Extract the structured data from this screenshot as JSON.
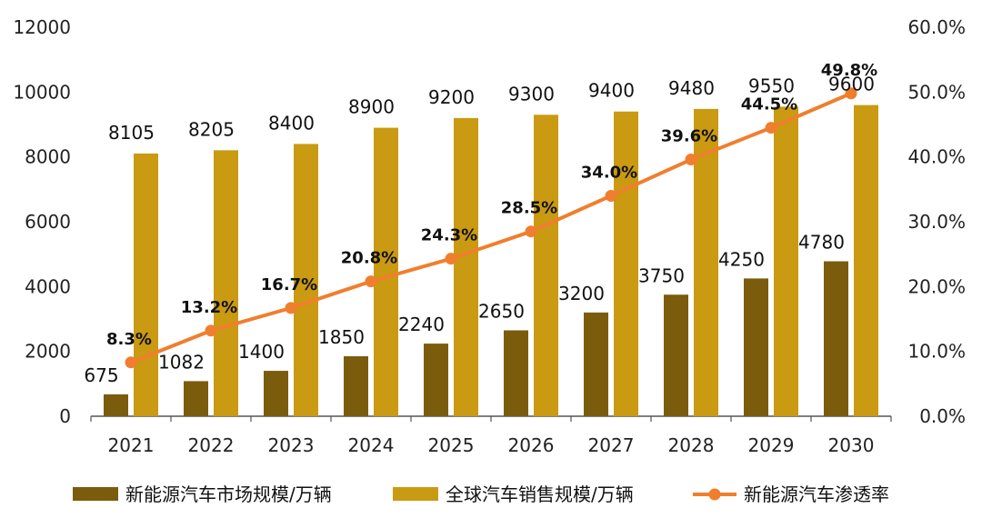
{
  "chart_data": {
    "type": "bar",
    "categories": [
      "2021",
      "2022",
      "2023",
      "2024",
      "2025",
      "2026",
      "2027",
      "2028",
      "2029",
      "2030"
    ],
    "series": [
      {
        "name": "新能源汽车市场规模/万辆",
        "type": "bar",
        "axis": "left",
        "color": "#7a5c0c",
        "values": [
          675,
          1082,
          1400,
          1850,
          2240,
          2650,
          3200,
          3750,
          4250,
          4780
        ]
      },
      {
        "name": "全球汽车销售规模/万辆",
        "type": "bar",
        "axis": "left",
        "color": "#c99a12",
        "values": [
          8105,
          8205,
          8400,
          8900,
          9200,
          9300,
          9400,
          9480,
          9550,
          9600
        ]
      },
      {
        "name": "新能源汽车渗透率",
        "type": "line",
        "axis": "right",
        "color": "#f07e2e",
        "values": [
          8.3,
          13.2,
          16.7,
          20.8,
          24.3,
          28.5,
          34.0,
          39.6,
          44.5,
          49.8
        ],
        "labels": [
          "8.3%",
          "13.2%",
          "16.7%",
          "20.8%",
          "24.3%",
          "28.5%",
          "34.0%",
          "39.6%",
          "44.5%",
          "49.8%"
        ]
      }
    ],
    "y_left": {
      "ylim": [
        0,
        12000
      ],
      "ticks": [
        0,
        2000,
        4000,
        6000,
        8000,
        10000,
        12000
      ],
      "tick_labels": [
        "0",
        "2000",
        "4000",
        "6000",
        "8000",
        "10000",
        "12000"
      ]
    },
    "y_right": {
      "ylim": [
        0,
        60
      ],
      "ticks": [
        0,
        10,
        20,
        30,
        40,
        50,
        60
      ],
      "tick_labels": [
        "0.0%",
        "10.0%",
        "20.0%",
        "30.0%",
        "40.0%",
        "50.0%",
        "60.0%"
      ]
    },
    "grid": false,
    "legend": "bottom"
  }
}
